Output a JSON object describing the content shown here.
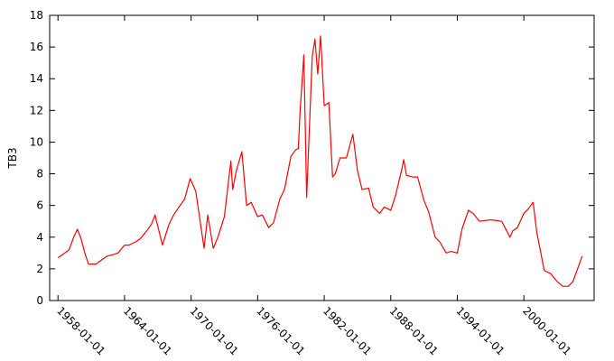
{
  "chart_data": {
    "type": "line",
    "title": "",
    "xlabel": "",
    "ylabel": "TB3",
    "ylim": [
      0,
      18
    ],
    "y_ticks": [
      0,
      2,
      4,
      6,
      8,
      10,
      12,
      14,
      16,
      18
    ],
    "x_ticks": [
      "1958-01-01",
      "1964-01-01",
      "1970-01-01",
      "1976-01-01",
      "1982-01-01",
      "1988-01-01",
      "1994-01-01",
      "2000-01-01"
    ],
    "xlim": [
      "1957-04-01",
      "2006-05-01"
    ],
    "grid": false,
    "legend": "none",
    "colors": {
      "line": "#ff0000",
      "axes": "#000000",
      "background": "#ffffff"
    },
    "series": [
      {
        "x": [
          "1958-01-01",
          "1958-06-01",
          "1959-01-01",
          "1959-06-01",
          "1959-10-01",
          "1960-02-01",
          "1960-06-01",
          "1960-10-01",
          "1961-06-01",
          "1962-01-01",
          "1962-06-01",
          "1963-01-01",
          "1963-06-01",
          "1964-01-01",
          "1964-06-01",
          "1965-01-01",
          "1965-06-01",
          "1966-01-01",
          "1966-06-01",
          "1966-10-01",
          "1967-06-01",
          "1968-01-01",
          "1968-06-01",
          "1969-01-01",
          "1969-06-01",
          "1969-12-01",
          "1970-06-01",
          "1971-03-01",
          "1971-07-01",
          "1972-01-01",
          "1972-06-01",
          "1973-01-01",
          "1973-08-01",
          "1973-10-01",
          "1974-02-01",
          "1974-08-01",
          "1975-01-01",
          "1975-06-01",
          "1976-01-01",
          "1976-06-01",
          "1977-01-01",
          "1977-06-01",
          "1978-01-01",
          "1978-06-01",
          "1979-01-01",
          "1979-06-01",
          "1979-09-01",
          "1979-11-01",
          "1980-03-01",
          "1980-06-01",
          "1980-12-01",
          "1981-03-01",
          "1981-06-01",
          "1981-09-01",
          "1982-01-01",
          "1982-06-01",
          "1982-10-01",
          "1983-01-01",
          "1983-06-01",
          "1984-01-01",
          "1984-08-01",
          "1985-01-01",
          "1985-06-01",
          "1986-01-01",
          "1986-06-01",
          "1987-01-01",
          "1987-06-01",
          "1988-01-01",
          "1988-06-01",
          "1989-01-01",
          "1989-03-01",
          "1989-06-01",
          "1990-01-01",
          "1990-06-01",
          "1991-01-01",
          "1991-06-01",
          "1992-01-01",
          "1992-06-01",
          "1993-01-01",
          "1993-06-01",
          "1994-01-01",
          "1994-06-01",
          "1995-01-01",
          "1995-06-01",
          "1996-01-01",
          "1997-01-01",
          "1998-01-01",
          "1998-10-01",
          "1999-01-01",
          "1999-06-01",
          "2000-01-01",
          "2000-06-01",
          "2000-11-01",
          "2001-03-01",
          "2001-06-01",
          "2001-11-01",
          "2002-06-01",
          "2003-01-01",
          "2003-07-01",
          "2004-01-01",
          "2004-06-01",
          "2005-01-01",
          "2005-04-01"
        ],
        "y": [
          2.7,
          2.9,
          3.2,
          4.0,
          4.5,
          3.9,
          3.0,
          2.3,
          2.3,
          2.6,
          2.8,
          2.9,
          3.0,
          3.5,
          3.5,
          3.7,
          3.9,
          4.4,
          4.8,
          5.4,
          3.5,
          4.8,
          5.4,
          6.0,
          6.4,
          7.7,
          6.9,
          3.3,
          5.4,
          3.3,
          4.0,
          5.3,
          8.8,
          7.0,
          8.2,
          9.4,
          6.0,
          6.2,
          5.3,
          5.4,
          4.6,
          4.9,
          6.4,
          7.0,
          9.1,
          9.5,
          9.6,
          12.0,
          15.5,
          6.5,
          15.4,
          16.5,
          14.3,
          16.7,
          12.3,
          12.5,
          7.8,
          8.0,
          9.0,
          9.0,
          10.5,
          8.2,
          7.0,
          7.1,
          5.9,
          5.5,
          5.9,
          5.7,
          6.6,
          8.3,
          8.9,
          7.9,
          7.8,
          7.8,
          6.3,
          5.6,
          4.0,
          3.7,
          3.0,
          3.1,
          3.0,
          4.5,
          5.7,
          5.5,
          5.0,
          5.1,
          5.0,
          4.0,
          4.4,
          4.6,
          5.5,
          5.8,
          6.2,
          4.3,
          3.4,
          1.9,
          1.7,
          1.2,
          0.9,
          0.9,
          1.2,
          2.3,
          2.8
        ]
      }
    ]
  }
}
